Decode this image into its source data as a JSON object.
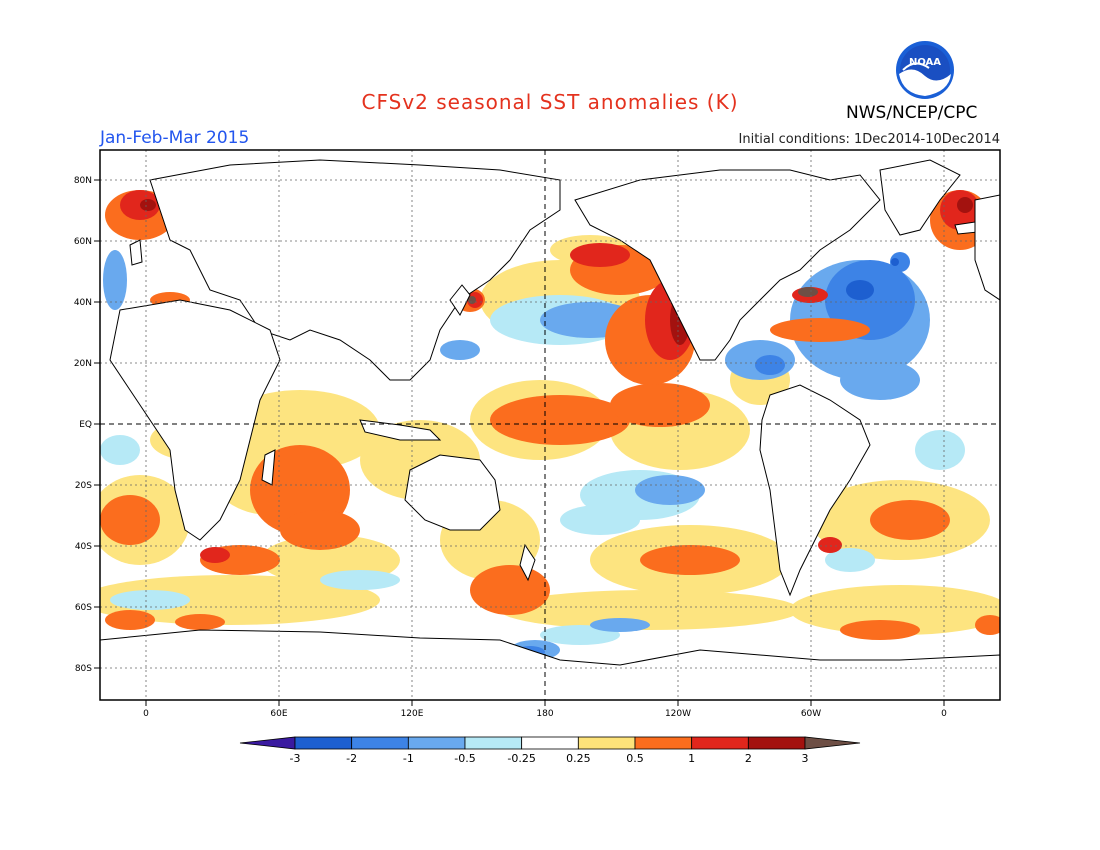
{
  "header": {
    "title": "CFSv2 seasonal SST anomalies (K)",
    "period": "Jan-Feb-Mar 2015",
    "initial_conditions": "Initial conditions: 1Dec2014-10Dec2014",
    "agency": "NWS/NCEP/CPC",
    "logo_text": "NOAA"
  },
  "map": {
    "lon_labels": [
      "0",
      "60E",
      "120E",
      "180",
      "120W",
      "60W",
      "0"
    ],
    "lat_labels": [
      "80N",
      "60N",
      "40N",
      "20N",
      "EQ",
      "20S",
      "40S",
      "60S",
      "80S"
    ]
  },
  "colorbar": {
    "labels": [
      "-3",
      "-2",
      "-1",
      "-0.5",
      "-0.25",
      "0.25",
      "0.5",
      "1",
      "2",
      "3"
    ],
    "colors": [
      "#3a1aa0",
      "#1d5fd0",
      "#3d83e6",
      "#69a9ee",
      "#b6e9f6",
      "#ffffff",
      "#fde37a",
      "#fb6d1e",
      "#e1261c",
      "#a3120f",
      "#6e4f45"
    ]
  },
  "colors": {
    "title": "#e4321e",
    "period": "#2255ee"
  }
}
